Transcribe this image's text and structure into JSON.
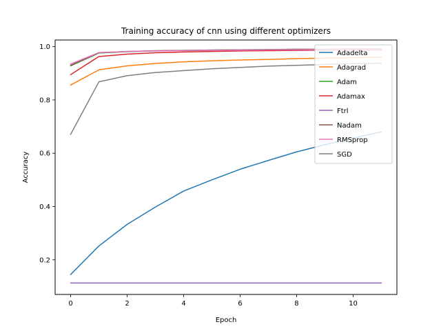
{
  "chart_data": {
    "type": "line",
    "title": "Training accuracy of cnn using different optimizers",
    "xlabel": "Epoch",
    "ylabel": "Accuracy",
    "xlim": [
      -0.55,
      11.55
    ],
    "ylim": [
      0.07,
      1.025
    ],
    "xticks": [
      0,
      2,
      4,
      6,
      8,
      10
    ],
    "yticks": [
      0.2,
      0.4,
      0.6,
      0.8,
      1.0
    ],
    "grid": false,
    "legend_position": "top-right",
    "x": [
      0,
      1,
      2,
      3,
      4,
      5,
      6,
      7,
      8,
      9,
      10,
      11
    ],
    "series": [
      {
        "name": "Adadelta",
        "color": "#1f77b4",
        "values": [
          0.145,
          0.252,
          0.333,
          0.398,
          0.458,
          0.5,
          0.54,
          0.573,
          0.605,
          0.632,
          0.657,
          0.68
        ]
      },
      {
        "name": "Adagrad",
        "color": "#ff7f0e",
        "values": [
          0.856,
          0.913,
          0.928,
          0.937,
          0.943,
          0.947,
          0.95,
          0.952,
          0.955,
          0.957,
          0.959,
          0.961
        ]
      },
      {
        "name": "Adam",
        "color": "#2ca02c",
        "values": [
          0.928,
          0.976,
          0.981,
          0.984,
          0.986,
          0.987,
          0.988,
          0.989,
          0.99,
          0.99,
          0.991,
          0.991
        ]
      },
      {
        "name": "Adamax",
        "color": "#d62728",
        "values": [
          0.895,
          0.963,
          0.972,
          0.977,
          0.98,
          0.982,
          0.984,
          0.985,
          0.986,
          0.987,
          0.988,
          0.988
        ]
      },
      {
        "name": "Ftrl",
        "color": "#9467bd",
        "values": [
          0.113,
          0.113,
          0.113,
          0.113,
          0.113,
          0.113,
          0.113,
          0.113,
          0.113,
          0.113,
          0.113,
          0.113
        ]
      },
      {
        "name": "Nadam",
        "color": "#8c564b",
        "values": [
          0.93,
          0.977,
          0.982,
          0.985,
          0.986,
          0.987,
          0.988,
          0.989,
          0.99,
          0.99,
          0.991,
          0.991
        ]
      },
      {
        "name": "RMSprop",
        "color": "#e377c2",
        "values": [
          0.935,
          0.978,
          0.982,
          0.984,
          0.985,
          0.986,
          0.987,
          0.988,
          0.988,
          0.989,
          0.989,
          0.99
        ]
      },
      {
        "name": "SGD",
        "color": "#7f7f7f",
        "values": [
          0.671,
          0.868,
          0.891,
          0.903,
          0.91,
          0.917,
          0.922,
          0.927,
          0.93,
          0.933,
          0.936,
          0.938
        ]
      }
    ]
  }
}
